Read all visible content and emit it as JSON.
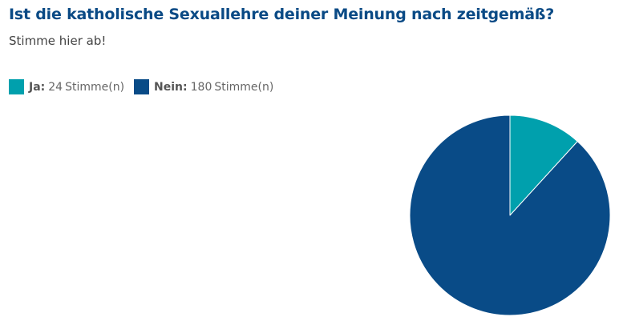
{
  "poll": {
    "title": "Ist die katholische Sexuallehre deiner Meinung nach zeitgemäß?",
    "subtitle": "Stimme hier ab!"
  },
  "legend": [
    {
      "name": "Ja",
      "sep": ":",
      "count": "24",
      "unit": "Stimme(n)",
      "color": "#00a0ad"
    },
    {
      "name": "Nein",
      "sep": ":",
      "count": "180",
      "unit": "Stimme(n)",
      "color": "#094b87"
    }
  ],
  "chart_data": {
    "type": "pie",
    "title": "Ist die katholische Sexuallehre deiner Meinung nach zeitgemäß?",
    "subtitle": "Stimme hier ab!",
    "categories": [
      "Ja",
      "Nein"
    ],
    "values": [
      24,
      180
    ],
    "unit": "Stimme(n)",
    "colors": [
      "#00a0ad",
      "#094b87"
    ],
    "start": "top",
    "direction": "clockwise",
    "legend_position": "top-left"
  }
}
